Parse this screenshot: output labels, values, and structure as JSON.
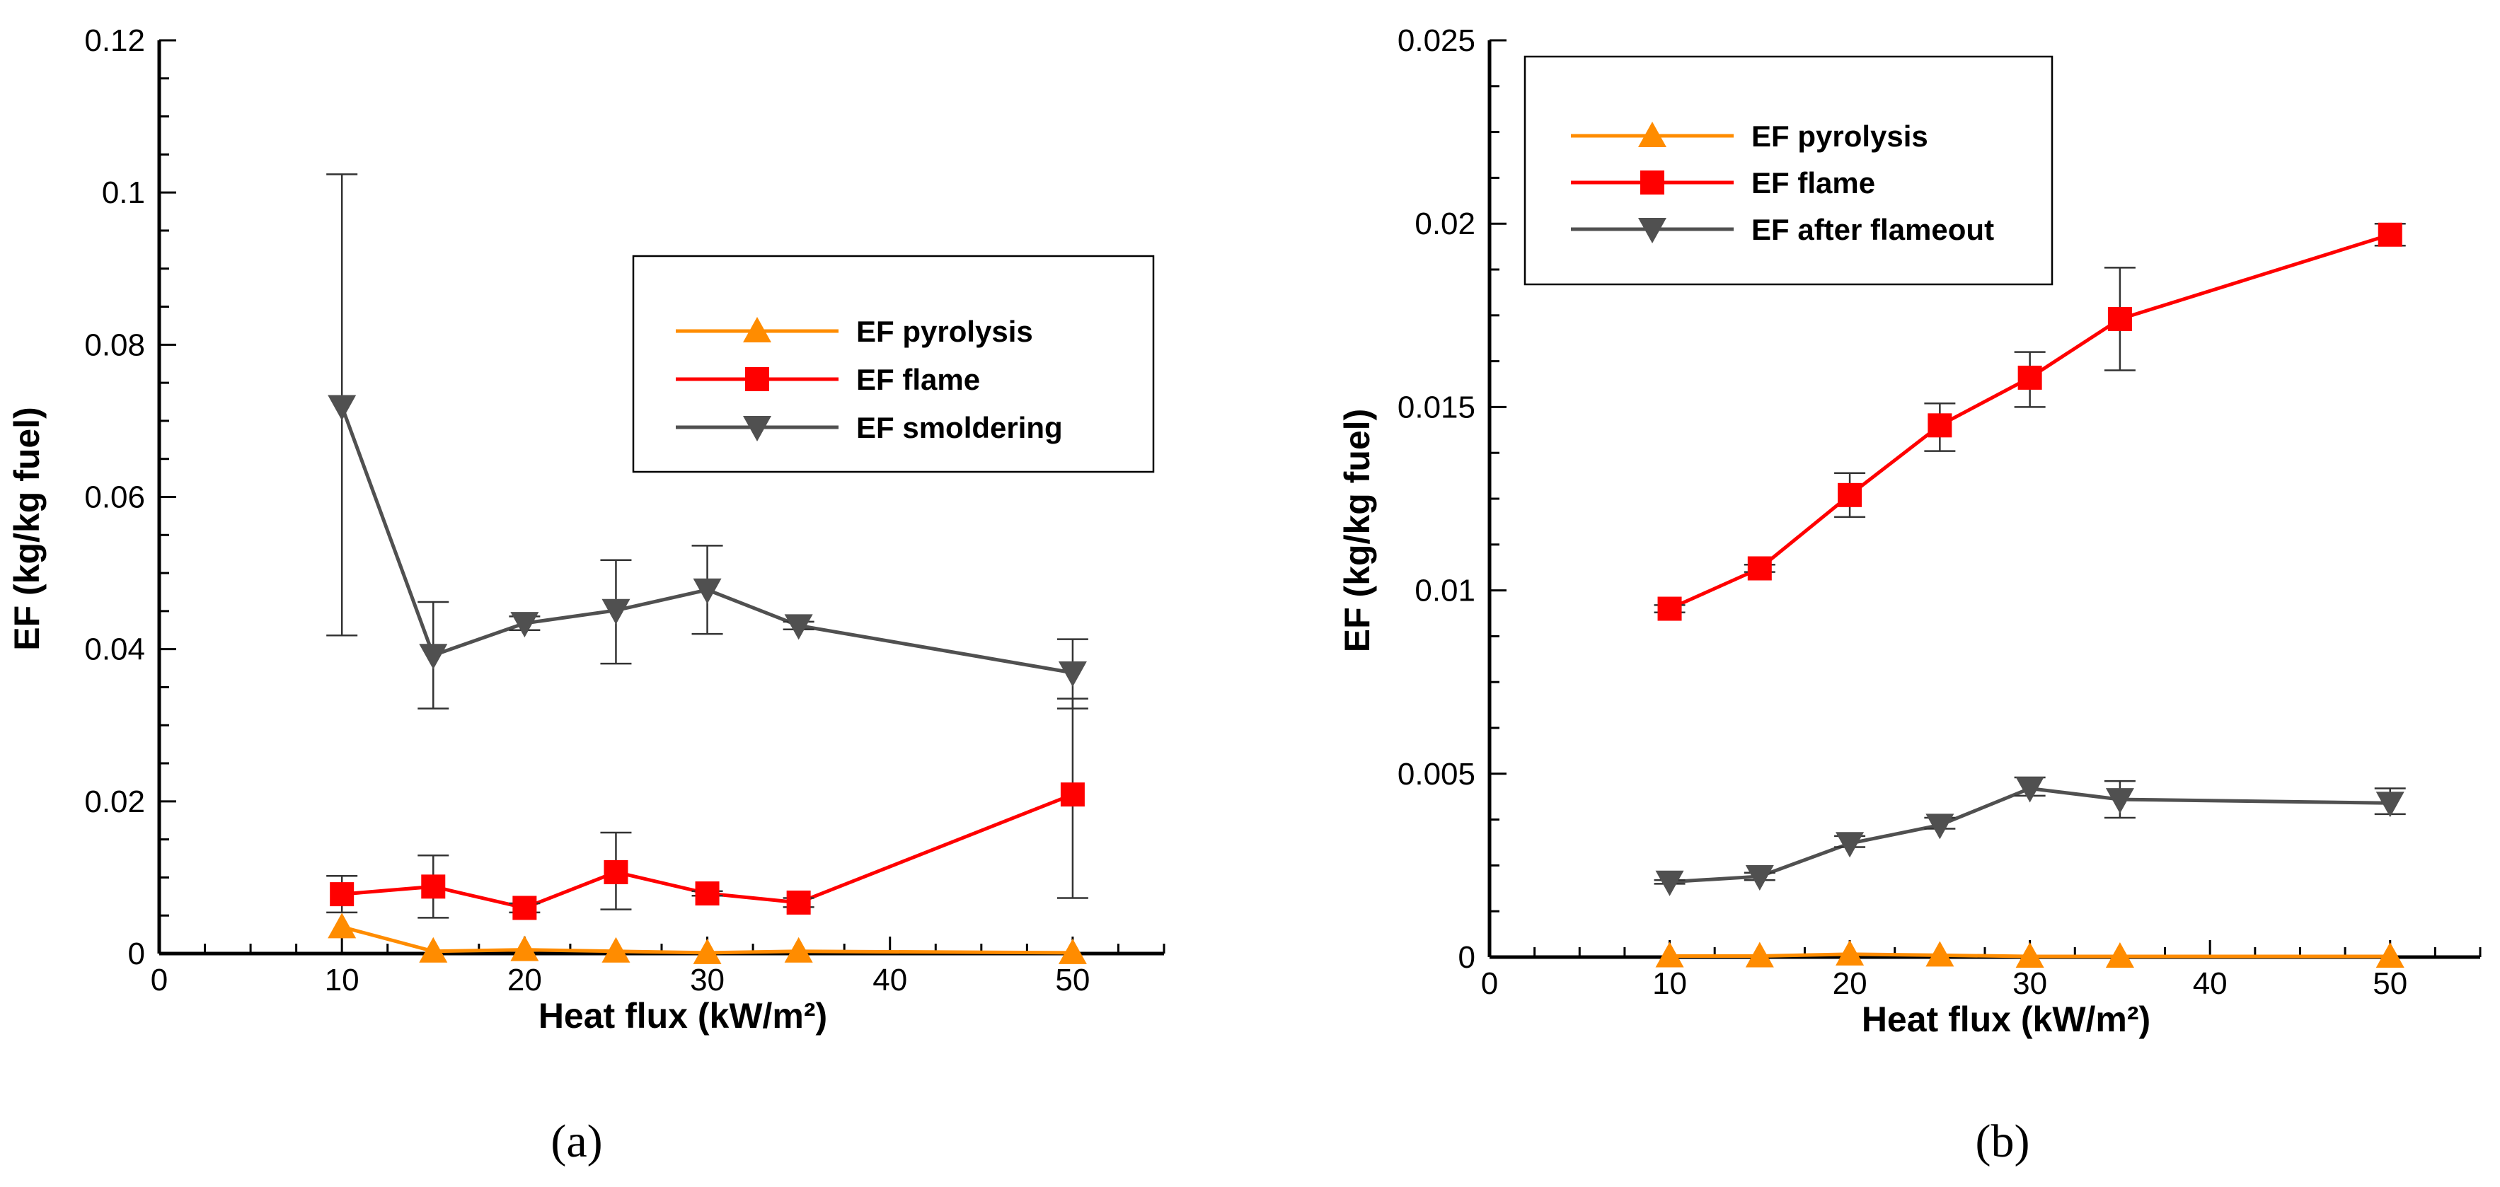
{
  "chart_data": [
    {
      "type": "line",
      "panel_label": "(a)",
      "xlabel": "Heat flux (kW/m²)",
      "ylabel": "EF (kg/kg fuel)",
      "xlim": [
        0,
        55
      ],
      "ylim": [
        0,
        0.12
      ],
      "x_ticks": [
        0,
        10,
        20,
        30,
        40,
        50
      ],
      "x_tick_labels": [
        "0",
        "10",
        "20",
        "30",
        "40",
        "50"
      ],
      "y_ticks": [
        0,
        0.02,
        0.04,
        0.06,
        0.08,
        0.1,
        0.12
      ],
      "y_tick_labels": [
        "0",
        "0.02",
        "0.04",
        "0.06",
        "0.08",
        "0.1",
        "0.12"
      ],
      "legend_position": "right",
      "series": [
        {
          "name": "EF pyrolysis",
          "color": "#FF8C00",
          "marker": "triangle-up",
          "x": [
            10,
            15,
            20,
            25,
            30,
            35,
            50
          ],
          "y": [
            0.0035,
            0.0003,
            0.0005,
            0.0003,
            0.0001,
            0.0003,
            0.0001
          ]
        },
        {
          "name": "EF flame",
          "color": "#FF0000",
          "marker": "square",
          "x": [
            10,
            15,
            20,
            25,
            30,
            35,
            50
          ],
          "y": [
            0.0078,
            0.0088,
            0.006,
            0.0107,
            0.0079,
            0.0067,
            0.0209
          ],
          "error_low": [
            0.0054,
            0.0047,
            0.0054,
            0.0058,
            0.0076,
            0.0061,
            0.0073
          ],
          "error_high": [
            0.0102,
            0.0129,
            0.0066,
            0.0159,
            0.0082,
            0.0073,
            0.0335
          ]
        },
        {
          "name": "EF smoldering",
          "color": "#505050",
          "marker": "triangle-down",
          "x": [
            10,
            15,
            20,
            25,
            30,
            35,
            50
          ],
          "y": [
            0.0719,
            0.0392,
            0.0434,
            0.0451,
            0.0478,
            0.0431,
            0.0369
          ],
          "error_low": [
            0.0418,
            0.0322,
            0.0425,
            0.0381,
            0.042,
            0.0426,
            0.0322
          ],
          "error_high": [
            0.1024,
            0.0462,
            0.0443,
            0.0517,
            0.0536,
            0.0436,
            0.0413
          ]
        }
      ]
    },
    {
      "type": "line",
      "panel_label": "(b)",
      "xlabel": "Heat flux (kW/m²)",
      "ylabel": "EF (kg/kg fuel)",
      "xlim": [
        0,
        55
      ],
      "ylim": [
        0,
        0.025
      ],
      "x_ticks": [
        0,
        10,
        20,
        30,
        40,
        50
      ],
      "x_tick_labels": [
        "0",
        "10",
        "20",
        "30",
        "40",
        "50"
      ],
      "y_ticks": [
        0,
        0.005,
        0.01,
        0.015,
        0.02,
        0.025
      ],
      "y_tick_labels": [
        "0",
        "0.005",
        "0.01",
        "0.015",
        "0.02",
        "0.025"
      ],
      "legend_position": "top-left",
      "series": [
        {
          "name": "EF pyrolysis",
          "color": "#FF8C00",
          "marker": "triangle-up",
          "x": [
            10,
            15,
            20,
            25,
            30,
            35,
            50
          ],
          "y": [
            3e-05,
            3e-05,
            8e-05,
            5e-05,
            2e-05,
            2e-05,
            2e-05
          ]
        },
        {
          "name": "EF flame",
          "color": "#FF0000",
          "marker": "square",
          "x": [
            10,
            15,
            20,
            25,
            30,
            35,
            50
          ],
          "y": [
            0.0095,
            0.0106,
            0.0126,
            0.0145,
            0.0158,
            0.0174,
            0.0197
          ],
          "error_low": [
            0.0094,
            0.0105,
            0.012,
            0.0138,
            0.015,
            0.016,
            0.0194
          ],
          "error_high": [
            0.0096,
            0.0107,
            0.0132,
            0.0151,
            0.0165,
            0.0188,
            0.02
          ]
        },
        {
          "name": "EF after flameout",
          "color": "#505050",
          "marker": "triangle-down",
          "x": [
            10,
            15,
            20,
            25,
            30,
            35,
            50
          ],
          "y": [
            0.00205,
            0.0022,
            0.0031,
            0.0036,
            0.0046,
            0.0043,
            0.0042
          ],
          "error_low": [
            0.002,
            0.0021,
            0.003,
            0.0035,
            0.0044,
            0.0038,
            0.0039
          ],
          "error_high": [
            0.0021,
            0.0023,
            0.0033,
            0.0038,
            0.0049,
            0.0048,
            0.0046
          ]
        }
      ]
    }
  ]
}
